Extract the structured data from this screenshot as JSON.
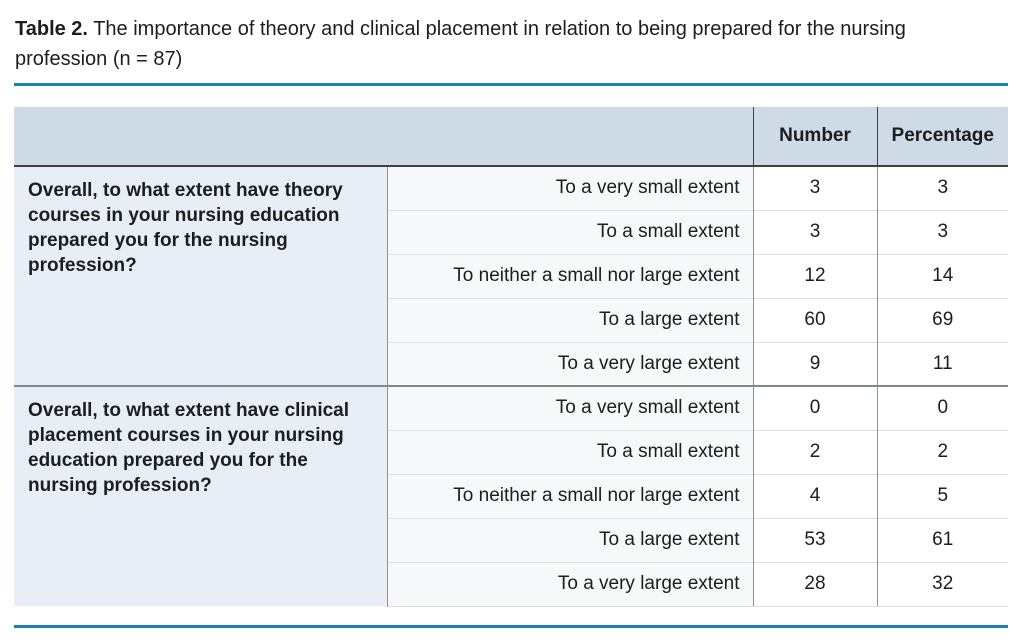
{
  "caption": {
    "label": "Table 2.",
    "text": "The importance of theory and clinical placement in relation to being prepared for the nursing profession (n = 87)"
  },
  "table": {
    "header": {
      "number": "Number",
      "percentage": "Percentage"
    },
    "groups": [
      {
        "question": "Overall, to what extent have theory courses in your nursing education prepared you for the nursing profession?",
        "rows": [
          {
            "label": "To a very small extent",
            "number": "3",
            "percentage": "3"
          },
          {
            "label": "To a small extent",
            "number": "3",
            "percentage": "3"
          },
          {
            "label": "To neither a small nor large extent",
            "number": "12",
            "percentage": "14"
          },
          {
            "label": "To a large extent",
            "number": "60",
            "percentage": "69"
          },
          {
            "label": "To a very large extent",
            "number": "9",
            "percentage": "11"
          }
        ]
      },
      {
        "question": "Overall, to what extent have clinical placement courses in your nursing education prepared you for the nursing profession?",
        "rows": [
          {
            "label": "To a very small extent",
            "number": "0",
            "percentage": "0"
          },
          {
            "label": "To a small extent",
            "number": "2",
            "percentage": "2"
          },
          {
            "label": "To neither a small nor large extent",
            "number": "4",
            "percentage": "5"
          },
          {
            "label": "To a large extent",
            "number": "53",
            "percentage": "61"
          },
          {
            "label": "To a very large extent",
            "number": "28",
            "percentage": "32"
          }
        ]
      }
    ]
  },
  "colors": {
    "rule_blue": "#1b80b2",
    "header_bg": "#cedae5",
    "question_bg": "#e9eef6",
    "answer_bg": "#f7f8fa",
    "dark_border": "#3c4146"
  }
}
